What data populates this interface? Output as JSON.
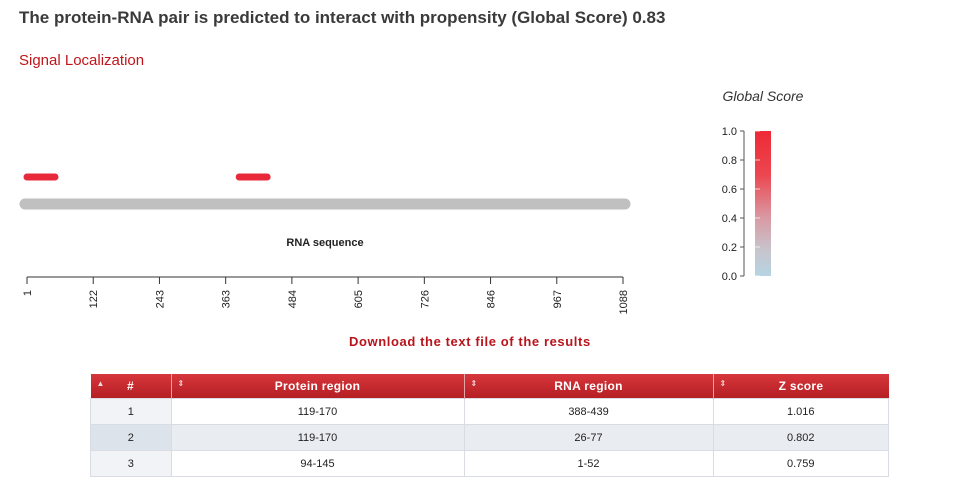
{
  "headline": "The protein-RNA pair is predicted to interact with propensity (Global Score) 0.83",
  "section_link": "Signal Localization",
  "download_link": "Download the text file of the results",
  "colors": {
    "accent": "#c0161b",
    "signal": "#e8293a",
    "track": "#c0c0c0"
  },
  "chart_data": {
    "type": "track",
    "axis_label": "RNA sequence",
    "x_range": [
      1,
      1088
    ],
    "ticks": [
      "1",
      "122",
      "243",
      "363",
      "484",
      "605",
      "726",
      "846",
      "967",
      "1088"
    ],
    "segments": [
      {
        "name": "segment-1",
        "start": 1,
        "end": 52
      },
      {
        "name": "segment-2",
        "start": 388,
        "end": 439
      }
    ],
    "legend": {
      "title": "Global Score",
      "range": [
        0.0,
        1.0
      ],
      "ticks": [
        "1.0",
        "0.8",
        "0.6",
        "0.4",
        "0.2",
        "0.0"
      ]
    }
  },
  "table": {
    "headers": {
      "index": "#",
      "protein": "Protein region",
      "rna": "RNA region",
      "z": "Z score"
    },
    "rows": [
      {
        "index": "1",
        "protein": "119-170",
        "rna": "388-439",
        "z": "1.016"
      },
      {
        "index": "2",
        "protein": "119-170",
        "rna": "26-77",
        "z": "0.802"
      },
      {
        "index": "3",
        "protein": "94-145",
        "rna": "1-52",
        "z": "0.759"
      }
    ]
  }
}
